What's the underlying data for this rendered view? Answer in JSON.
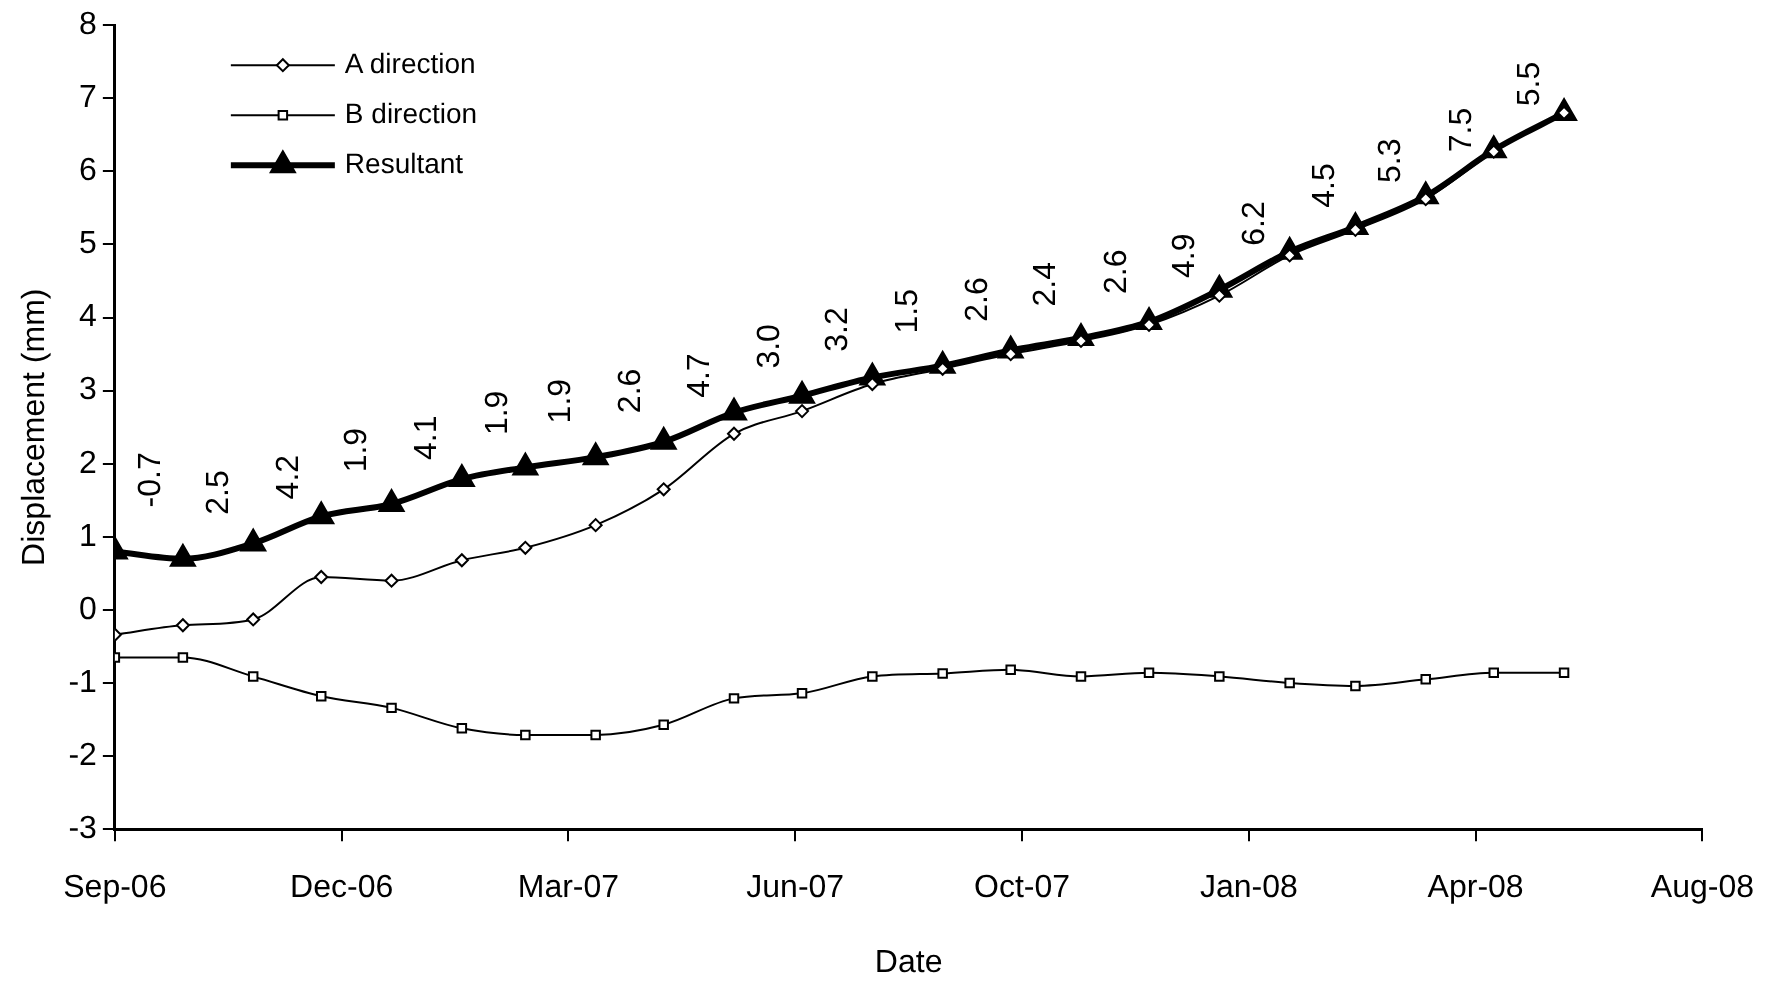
{
  "chart_data": {
    "type": "line",
    "xlabel": "Date",
    "ylabel": "Displacement (mm)",
    "x": [
      "2006-09-01",
      "2006-10-01",
      "2006-11-01",
      "2006-12-01",
      "2007-01-01",
      "2007-02-01",
      "2007-03-01",
      "2007-04-01",
      "2007-05-01",
      "2007-06-01",
      "2007-07-01",
      "2007-08-01",
      "2007-09-01",
      "2007-10-01",
      "2007-11-01",
      "2007-12-01",
      "2008-01-01",
      "2008-02-01",
      "2008-03-01",
      "2008-04-01",
      "2008-05-01",
      "2008-06-01"
    ],
    "series": [
      {
        "name": "A direction",
        "color": "#000000",
        "marker": "diamond",
        "values": [
          -0.34,
          -0.21,
          -0.13,
          0.45,
          0.4,
          0.68,
          0.85,
          1.16,
          1.65,
          2.41,
          2.72,
          3.09,
          3.3,
          3.5,
          3.68,
          3.9,
          4.3,
          4.85,
          5.2,
          5.62,
          6.27,
          6.8
        ]
      },
      {
        "name": "B direction",
        "color": "#000000",
        "marker": "square",
        "values": [
          -0.65,
          -0.65,
          -0.91,
          -1.18,
          -1.34,
          -1.62,
          -1.71,
          -1.71,
          -1.57,
          -1.21,
          -1.14,
          -0.91,
          -0.87,
          -0.82,
          -0.91,
          -0.86,
          -0.91,
          -1.0,
          -1.04,
          -0.95,
          -0.86,
          -0.86
        ]
      },
      {
        "name": "Resultant",
        "color": "#000000",
        "marker": "triangle",
        "values": [
          0.8,
          0.7,
          0.91,
          1.28,
          1.45,
          1.79,
          1.95,
          2.09,
          2.3,
          2.7,
          2.93,
          3.18,
          3.34,
          3.55,
          3.72,
          3.94,
          4.38,
          4.9,
          5.24,
          5.66,
          6.29,
          6.8
        ]
      }
    ],
    "annotations": [
      {
        "text": "-0.7",
        "x": "2006-09-01",
        "y": 0.8
      },
      {
        "text": "2.5",
        "x": "2006-10-01",
        "y": 0.7
      },
      {
        "text": "4.2",
        "x": "2006-11-01",
        "y": 0.91
      },
      {
        "text": "1.9",
        "x": "2006-12-01",
        "y": 1.28
      },
      {
        "text": "4.1",
        "x": "2007-01-01",
        "y": 1.45
      },
      {
        "text": "1.9",
        "x": "2007-02-01",
        "y": 1.79
      },
      {
        "text": "1.9",
        "x": "2007-03-01",
        "y": 1.95
      },
      {
        "text": "2.6",
        "x": "2007-04-01",
        "y": 2.09
      },
      {
        "text": "4.7",
        "x": "2007-05-01",
        "y": 2.3
      },
      {
        "text": "3.0",
        "x": "2007-06-01",
        "y": 2.7
      },
      {
        "text": "3.2",
        "x": "2007-07-01",
        "y": 2.93
      },
      {
        "text": "1.5",
        "x": "2007-08-01",
        "y": 3.18
      },
      {
        "text": "2.6",
        "x": "2007-09-01",
        "y": 3.34
      },
      {
        "text": "2.4",
        "x": "2007-10-01",
        "y": 3.55
      },
      {
        "text": "2.6",
        "x": "2007-11-01",
        "y": 3.72
      },
      {
        "text": "4.9",
        "x": "2007-12-01",
        "y": 3.94
      },
      {
        "text": "6.2",
        "x": "2008-01-01",
        "y": 4.38
      },
      {
        "text": "4.5",
        "x": "2008-02-01",
        "y": 4.9
      },
      {
        "text": "5.3",
        "x": "2008-03-01",
        "y": 5.24
      },
      {
        "text": "7.5",
        "x": "2008-04-01",
        "y": 5.66
      },
      {
        "text": "5.5",
        "x": "2008-05-01",
        "y": 6.29
      }
    ],
    "xlim": [
      "2006-09-01",
      "2008-08-01"
    ],
    "xticks": [
      {
        "value": "2006-09-01",
        "label": "Sep-06"
      },
      {
        "value": "2006-12-10",
        "label": "Dec-06"
      },
      {
        "value": "2007-03-20",
        "label": "Mar-07"
      },
      {
        "value": "2007-06-28",
        "label": "Jun-07"
      },
      {
        "value": "2007-10-06",
        "label": "Oct-07"
      },
      {
        "value": "2008-01-14",
        "label": "Jan-08"
      },
      {
        "value": "2008-04-23",
        "label": "Apr-08"
      },
      {
        "value": "2008-08-01",
        "label": "Aug-08"
      }
    ],
    "ylim": [
      -3,
      8
    ],
    "yticks": [
      -3,
      -2,
      -1,
      0,
      1,
      2,
      3,
      4,
      5,
      6,
      7,
      8
    ],
    "legend": "top left",
    "grid": false,
    "line_style": "solid"
  }
}
